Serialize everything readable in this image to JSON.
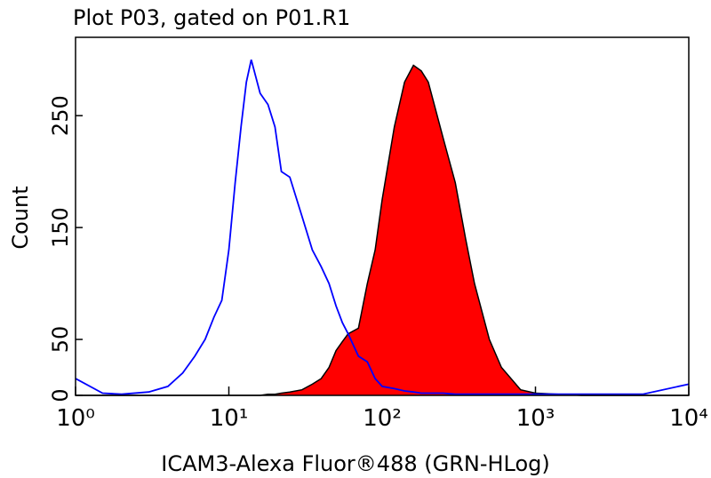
{
  "chart_data": {
    "type": "histogram-overlay",
    "title": "Plot P03, gated on P01.R1",
    "x_label": "ICAM3-Alexa Fluor®488 (GRN-HLog)",
    "y_label": "Count",
    "x_scale": "log",
    "xlim": [
      1,
      10000
    ],
    "xticks": [
      {
        "value": 1,
        "label": "10⁰"
      },
      {
        "value": 10,
        "label": "10¹"
      },
      {
        "value": 100,
        "label": "10²"
      },
      {
        "value": 1000,
        "label": "10³"
      },
      {
        "value": 10000,
        "label": "10⁴"
      }
    ],
    "ylim": [
      0,
      320
    ],
    "yticks": [
      0,
      50,
      150,
      250
    ],
    "x": [
      1,
      1.5,
      2,
      3,
      4,
      5,
      6,
      7,
      8,
      9,
      10,
      11,
      12,
      13,
      14,
      16,
      18,
      20,
      22,
      25,
      30,
      35,
      40,
      45,
      50,
      55,
      60,
      70,
      80,
      90,
      100,
      120,
      140,
      160,
      180,
      200,
      250,
      300,
      350,
      400,
      500,
      600,
      800,
      1000,
      2000,
      5000,
      10000
    ],
    "series": [
      {
        "style": "filled",
        "color": "#ff0000",
        "values": [
          0,
          0,
          0,
          0,
          0,
          0,
          0,
          0,
          0,
          0,
          0,
          0,
          0,
          0,
          0,
          0,
          1,
          1,
          2,
          3,
          5,
          10,
          15,
          25,
          40,
          48,
          55,
          60,
          100,
          130,
          175,
          240,
          280,
          295,
          290,
          280,
          230,
          190,
          140,
          100,
          50,
          25,
          5,
          2,
          0,
          0,
          0
        ]
      },
      {
        "style": "line",
        "color": "#0000ff",
        "values": [
          15,
          2,
          1,
          3,
          8,
          20,
          35,
          50,
          70,
          85,
          130,
          190,
          240,
          280,
          300,
          270,
          260,
          240,
          200,
          195,
          160,
          130,
          115,
          100,
          80,
          65,
          55,
          35,
          30,
          15,
          8,
          6,
          4,
          3,
          2,
          2,
          2,
          1,
          1,
          1,
          1,
          1,
          1,
          1,
          1,
          1,
          10
        ]
      }
    ]
  }
}
